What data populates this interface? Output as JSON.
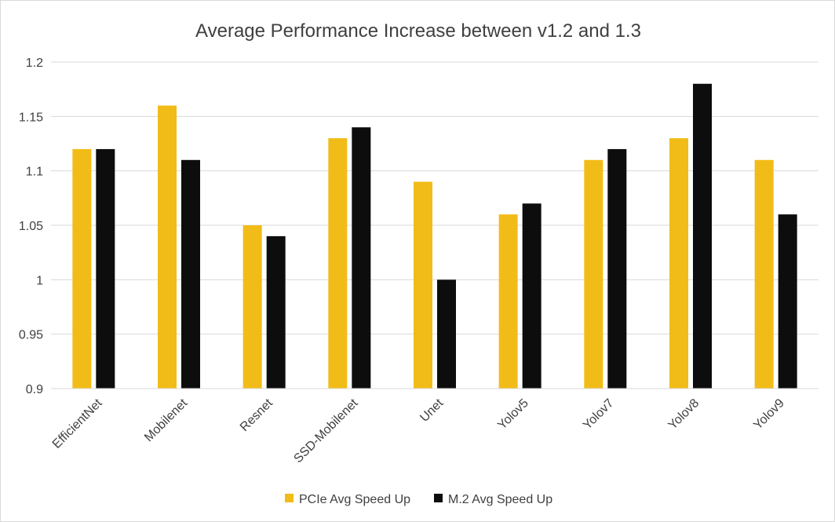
{
  "chart_data": {
    "type": "bar",
    "title": "Average Performance Increase between v1.2 and 1.3",
    "xlabel": "",
    "ylabel": "",
    "categories": [
      "EfficientNet",
      "Mobilenet",
      "Resnet",
      "SSD-Mobilenet",
      "Unet",
      "Yolov5",
      "Yolov7",
      "Yolov8",
      "Yolov9"
    ],
    "series": [
      {
        "name": "PCIe Avg Speed Up",
        "color": "#f2bc18",
        "values": [
          1.12,
          1.16,
          1.05,
          1.13,
          1.09,
          1.06,
          1.11,
          1.13,
          1.11
        ]
      },
      {
        "name": "M.2 Avg Speed Up",
        "color": "#0d0d0d",
        "values": [
          1.12,
          1.11,
          1.04,
          1.14,
          1.0,
          1.07,
          1.12,
          1.18,
          1.06
        ]
      }
    ],
    "ylim": [
      0.9,
      1.2
    ],
    "yticks": [
      "0.9",
      "0.95",
      "1",
      "1.05",
      "1.1",
      "1.15",
      "1.2"
    ],
    "grid": true,
    "legend_position": "bottom"
  }
}
